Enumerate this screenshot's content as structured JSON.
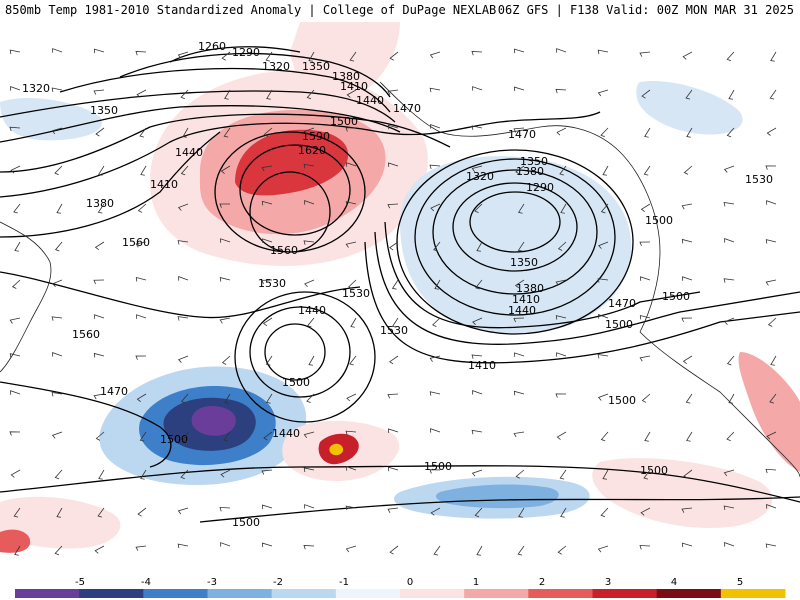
{
  "header": {
    "title_left": "850mb Temp 1981-2010 Standardized Anomaly | College of DuPage NEXLAB",
    "title_right": "06Z GFS | F138 Valid: 00Z MON MAR 31 2025"
  },
  "colorbar": {
    "ticks": [
      "-5",
      "-4",
      "-3",
      "-2",
      "-1",
      "0",
      "1",
      "2",
      "3",
      "4",
      "5"
    ],
    "colors": [
      "#6a3d9a",
      "#2c3f7f",
      "#3d7fc9",
      "#7fb1e0",
      "#bcd7f0",
      "#eef4fb",
      "#fbe3e3",
      "#f4a8a8",
      "#e65b5b",
      "#c8202a",
      "#7a0c14",
      "#f2c200"
    ]
  },
  "contours": {
    "labels": [
      {
        "id": "h1260",
        "text": "1260"
      },
      {
        "id": "h1290a",
        "text": "1290"
      },
      {
        "id": "h1320a",
        "text": "1320"
      },
      {
        "id": "h1350a",
        "text": "1350"
      },
      {
        "id": "h1380a",
        "text": "1380"
      },
      {
        "id": "h1410a",
        "text": "1410"
      },
      {
        "id": "h1440a",
        "text": "1440"
      },
      {
        "id": "h1470a",
        "text": "1470"
      },
      {
        "id": "h1500a",
        "text": "1500"
      },
      {
        "id": "h1320w",
        "text": "1320"
      },
      {
        "id": "h1350w",
        "text": "1350"
      },
      {
        "id": "h1380w",
        "text": "1380"
      },
      {
        "id": "h1410w",
        "text": "1410"
      },
      {
        "id": "h1440w",
        "text": "1440"
      },
      {
        "id": "h1470w",
        "text": "1470"
      },
      {
        "id": "h1560a",
        "text": "1560"
      },
      {
        "id": "h1590",
        "text": "1590"
      },
      {
        "id": "h1620",
        "text": "1620"
      },
      {
        "id": "h1560b",
        "text": "1560"
      },
      {
        "id": "h1530a",
        "text": "1530"
      },
      {
        "id": "h1530b",
        "text": "1530"
      },
      {
        "id": "h1560c",
        "text": "1560"
      },
      {
        "id": "h1470b",
        "text": "1470"
      },
      {
        "id": "h1440b",
        "text": "1440"
      },
      {
        "id": "h1500b",
        "text": "1500"
      },
      {
        "id": "h1530c",
        "text": "1530"
      },
      {
        "id": "h1500c",
        "text": "1500"
      },
      {
        "id": "h1440e",
        "text": "1440"
      },
      {
        "id": "h1380e",
        "text": "1380"
      },
      {
        "id": "h1350e",
        "text": "1350"
      },
      {
        "id": "h1320e",
        "text": "1320"
      },
      {
        "id": "h1290e",
        "text": "1290"
      },
      {
        "id": "h1350f",
        "text": "1350"
      },
      {
        "id": "h1380f",
        "text": "1380"
      },
      {
        "id": "h1410f",
        "text": "1410"
      },
      {
        "id": "h1440f",
        "text": "1440"
      },
      {
        "id": "h1470f",
        "text": "1470"
      },
      {
        "id": "h1500d",
        "text": "1500"
      },
      {
        "id": "h1410g",
        "text": "1410"
      },
      {
        "id": "h1500e",
        "text": "1500"
      },
      {
        "id": "h1500f",
        "text": "1500"
      },
      {
        "id": "h1530d",
        "text": "1530"
      },
      {
        "id": "h1500g",
        "text": "1500"
      },
      {
        "id": "h1500h",
        "text": "1500"
      },
      {
        "id": "h1500i",
        "text": "1500"
      },
      {
        "id": "h1500j",
        "text": "1500"
      }
    ]
  }
}
